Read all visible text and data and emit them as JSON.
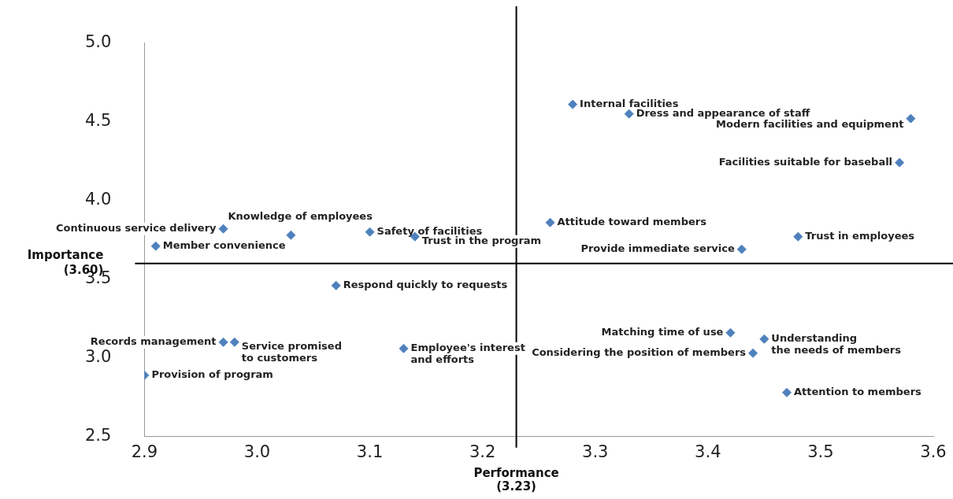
{
  "chart_data": {
    "type": "scatter",
    "marker": "diamond",
    "legend": false,
    "grid": false,
    "x": [
      2.97,
      3.03,
      3.1,
      3.14,
      2.91,
      3.28,
      3.33,
      3.58,
      3.57,
      3.26,
      3.48,
      3.43,
      3.07,
      2.97,
      2.98,
      3.13,
      2.9,
      3.42,
      3.45,
      3.44,
      3.47
    ],
    "series": [
      {
        "color": "#4f81bd",
        "values": [
          3.82,
          3.78,
          3.8,
          3.77,
          3.71,
          4.61,
          4.55,
          4.52,
          4.24,
          3.86,
          3.77,
          3.69,
          3.46,
          3.1,
          3.1,
          3.06,
          2.89,
          3.16,
          3.12,
          3.03,
          2.78
        ],
        "value_labels": [
          "Continuous service delivery",
          "Knowledge of employees",
          "Safety of facilities",
          "Trust in the program",
          "Member convenience",
          "Internal facilities",
          "Dress and appearance of staff",
          "Modern facilities and equipment",
          "Facilities suitable for baseball",
          "Attitude toward members",
          "Trust in employees",
          "Provide immediate service",
          "Respond quickly to requests",
          "Records management",
          "Service promised\nto customers",
          "Employee's interest\nand efforts",
          "Provision of program",
          "Matching time of use",
          "Understanding\nthe needs of members",
          "Considering the position of members",
          "Attention to members"
        ]
      }
    ],
    "xlim": [
      2.9,
      3.6
    ],
    "xticks": [
      2.9,
      {
        "value": 3,
        "label": "3.0"
      },
      3.1,
      3.2,
      3.3,
      3.4,
      3.5,
      3.6
    ],
    "ylim": [
      2.5,
      5.0
    ],
    "yticks": [
      2.5,
      {
        "value": 3,
        "label": "3.0"
      },
      3.5,
      {
        "value": 4,
        "label": "4.0"
      },
      4.5,
      {
        "value": 5,
        "label": "5.0"
      }
    ],
    "ref_lines": [
      {
        "axis": "y",
        "value": 3.6,
        "label": "Importance\n(3.60)"
      },
      {
        "axis": "x",
        "value": 3.23,
        "label": "Performance\n(3.23)"
      }
    ]
  }
}
